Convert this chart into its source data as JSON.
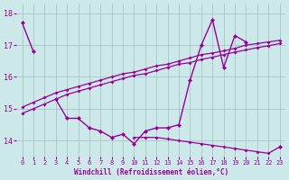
{
  "xlabel": "Windchill (Refroidissement éolien,°C)",
  "x": [
    0,
    1,
    2,
    3,
    4,
    5,
    6,
    7,
    8,
    9,
    10,
    11,
    12,
    13,
    14,
    15,
    16,
    17,
    18,
    19,
    20,
    21,
    22,
    23
  ],
  "line_main": [
    17.7,
    16.8,
    null,
    15.3,
    14.7,
    14.7,
    14.4,
    14.3,
    14.1,
    14.2,
    13.9,
    14.3,
    14.4,
    14.4,
    14.5,
    15.9,
    17.0,
    17.8,
    16.3,
    17.3,
    17.1,
    null,
    null,
    13.8
  ],
  "line_trend1": [
    15.05,
    15.2,
    15.35,
    15.5,
    15.6,
    15.7,
    15.8,
    15.9,
    16.0,
    16.1,
    16.15,
    16.25,
    16.35,
    16.4,
    16.5,
    16.6,
    16.7,
    16.75,
    16.82,
    16.9,
    17.0,
    17.05,
    17.1,
    17.15
  ],
  "line_trend2": [
    14.85,
    15.0,
    15.15,
    15.3,
    15.45,
    15.55,
    15.65,
    15.75,
    15.85,
    15.95,
    16.05,
    16.1,
    16.2,
    16.3,
    16.4,
    16.45,
    16.55,
    16.62,
    16.7,
    16.78,
    16.85,
    16.92,
    16.98,
    17.05
  ],
  "line_decreasing": [
    null,
    null,
    null,
    null,
    null,
    null,
    null,
    null,
    null,
    null,
    14.1,
    14.1,
    14.1,
    14.05,
    14.0,
    13.95,
    13.9,
    13.85,
    13.8,
    13.75,
    13.7,
    13.65,
    13.6,
    13.8
  ],
  "color": "#990099",
  "bg_color": "#cce8e8",
  "grid_color": "#aacccc",
  "ylim": [
    13.5,
    18.3
  ],
  "xlim": [
    -0.5,
    23.5
  ],
  "yticks": [
    14,
    15,
    16,
    17,
    18
  ],
  "xticks": [
    0,
    1,
    2,
    3,
    4,
    5,
    6,
    7,
    8,
    9,
    10,
    11,
    12,
    13,
    14,
    15,
    16,
    17,
    18,
    19,
    20,
    21,
    22,
    23
  ]
}
